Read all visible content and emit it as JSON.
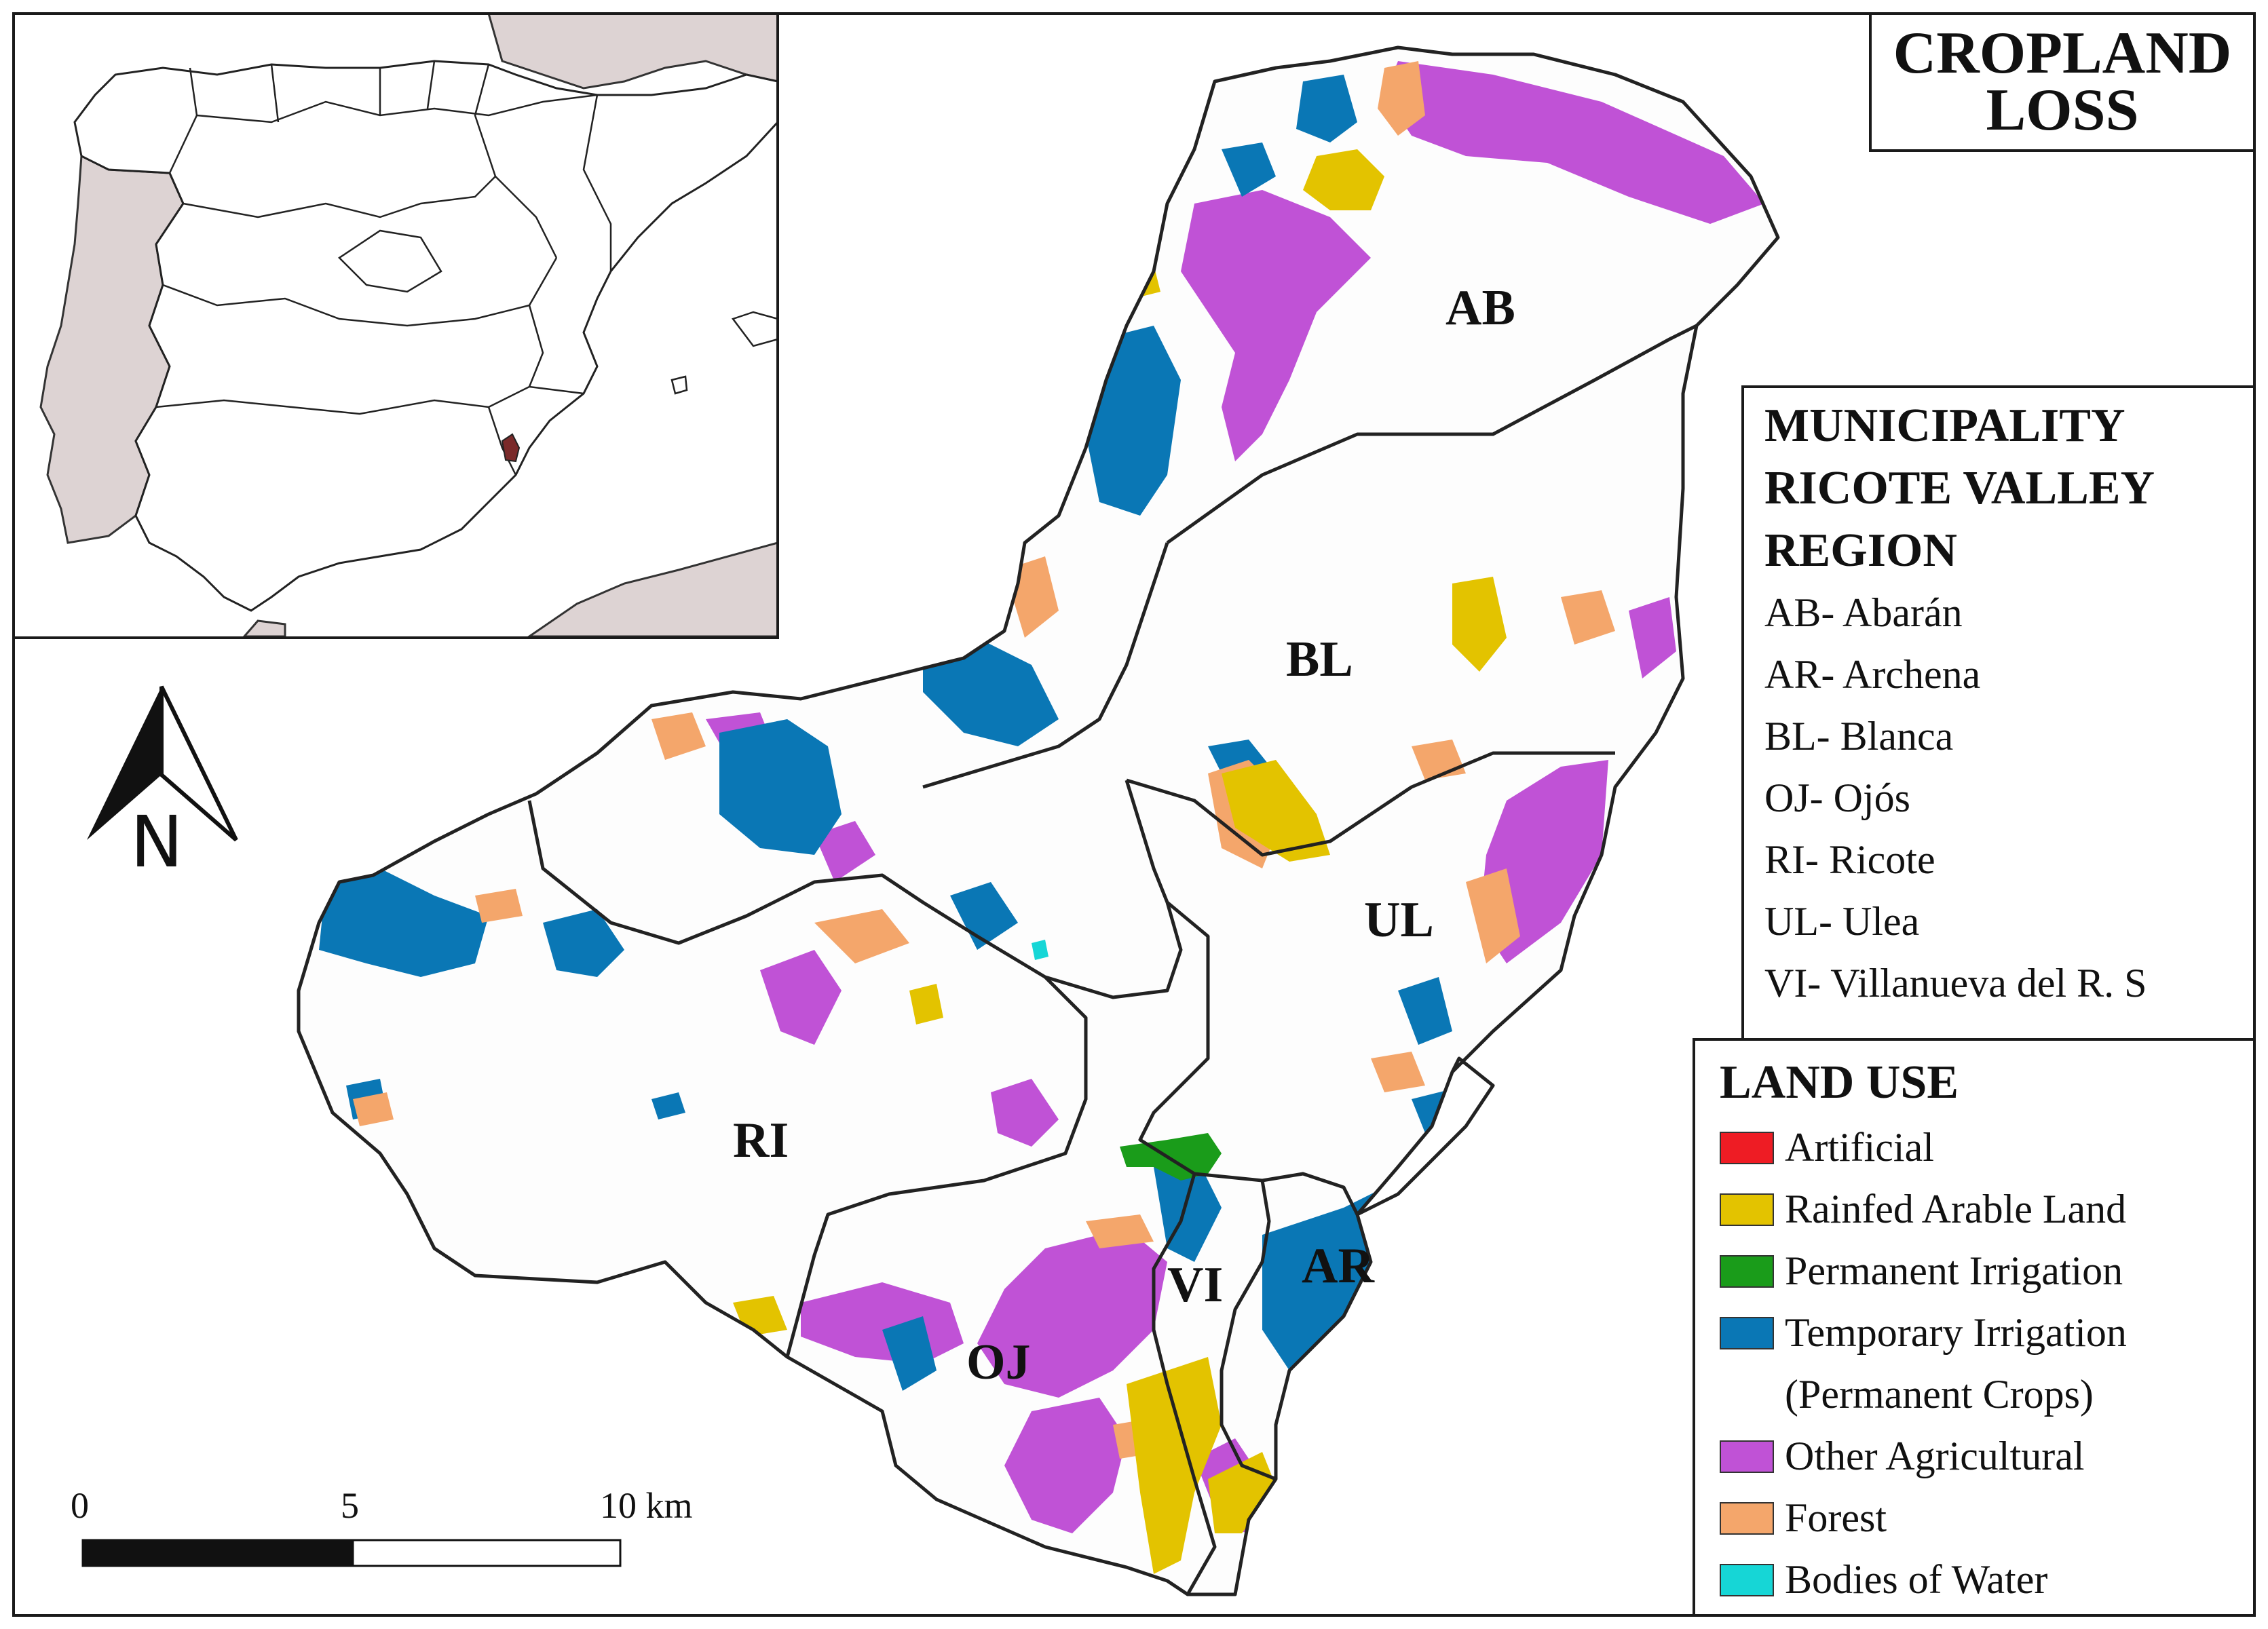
{
  "title": {
    "line1": "CROPLAND",
    "line2": "LOSS"
  },
  "north_arrow": {
    "label": "N"
  },
  "municipality_legend": {
    "heading1": "MUNICIPALITY",
    "heading2": "RICOTE VALLEY",
    "heading3": "REGION",
    "items": [
      "AB- Abarán",
      "AR- Archena",
      "BL- Blanca",
      "OJ- Ojós",
      "RI- Ricote",
      "UL- Ulea",
      "VI- Villanueva del R. S"
    ]
  },
  "land_use_legend": {
    "heading": "LAND USE",
    "items": [
      {
        "label": "Artificial",
        "color": "#ee1c24"
      },
      {
        "label": "Rainfed Arable Land",
        "color": "#e3c300"
      },
      {
        "label": "Permanent Irrigation",
        "color": "#1a9c1a"
      },
      {
        "label": "Temporary Irrigation",
        "label2": "(Permanent Crops)",
        "color": "#0a77b5"
      },
      {
        "label": "Other Agricultural",
        "color": "#c052d6"
      },
      {
        "label": "Forest",
        "color": "#f4a66b"
      },
      {
        "label": "Bodies of Water",
        "color": "#16d6d6"
      }
    ]
  },
  "municipality_codes": {
    "AB": "AB",
    "BL": "BL",
    "UL": "UL",
    "RI": "RI",
    "OJ": "OJ",
    "VI": "VI",
    "AR": "AR"
  },
  "scale_bar": {
    "label_start": "0",
    "label_mid": "5",
    "label_end": "10 km"
  },
  "colors": {
    "neighbor_land": "#ddd3d3",
    "spain_fill": "#ffffff",
    "study_area_marker": "#7a2a2a"
  }
}
